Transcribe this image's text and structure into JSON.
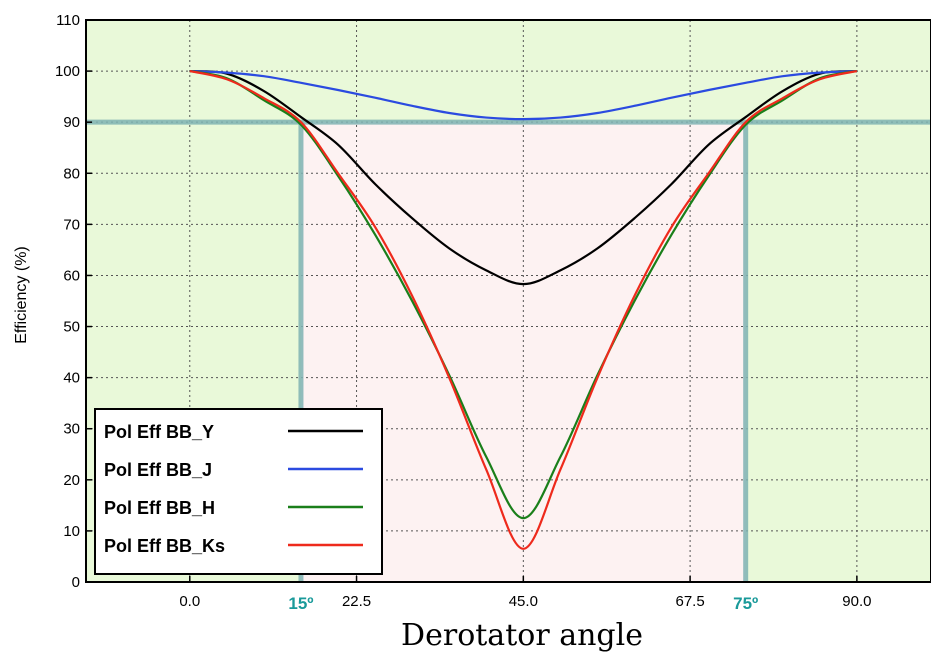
{
  "chart_data": {
    "type": "line",
    "title": "",
    "xlabel": "Derotator angle",
    "ylabel": "Efficiency (%)",
    "xlim": [
      -14,
      100
    ],
    "ylim": [
      0,
      110
    ],
    "xticks": [
      0.0,
      22.5,
      45.0,
      67.5,
      90.0
    ],
    "xtick_labels": [
      "0.0",
      "22.5",
      "45.0",
      "67.5",
      "90.0"
    ],
    "yticks": [
      0,
      10,
      20,
      30,
      40,
      50,
      60,
      70,
      80,
      90,
      100,
      110
    ],
    "ytick_labels": [
      "0",
      "10",
      "20",
      "30",
      "40",
      "50",
      "60",
      "70",
      "80",
      "90",
      "100",
      "110"
    ],
    "grid": true,
    "legend_position": "lower-left",
    "threshold": {
      "efficiency": 90,
      "angle_low": 15,
      "angle_high": 75,
      "angle_low_label": "15º",
      "angle_high_label": "75º",
      "color": "#7fb3b3",
      "label_color": "#1a9a9a"
    },
    "shading": {
      "acceptable_color": "#e9f9d9",
      "excluded_color": "#fdf2f2"
    },
    "series": [
      {
        "name": "Pol Eff BB_Y",
        "color": "#000000",
        "min_value": 58.3,
        "x": [
          0,
          5,
          10,
          15,
          20,
          25,
          30,
          35,
          40,
          45,
          50,
          55,
          60,
          65,
          70,
          75,
          80,
          85,
          90
        ],
        "values": [
          100,
          99.5,
          96.1,
          91.0,
          85.6,
          77.9,
          71.2,
          65.3,
          61.0,
          58.3,
          61.0,
          65.3,
          71.2,
          77.9,
          85.6,
          91.0,
          96.1,
          99.5,
          100
        ]
      },
      {
        "name": "Pol Eff BB_J",
        "color": "#2b4be0",
        "min_value": 90.6,
        "x": [
          0,
          5,
          10,
          15,
          20,
          25,
          30,
          35,
          40,
          45,
          50,
          55,
          60,
          65,
          70,
          75,
          80,
          85,
          90
        ],
        "values": [
          100,
          99.7,
          99.0,
          97.7,
          96.3,
          94.8,
          93.2,
          91.8,
          90.9,
          90.6,
          90.9,
          91.8,
          93.2,
          94.8,
          96.3,
          97.7,
          99.0,
          99.7,
          100
        ]
      },
      {
        "name": "Pol Eff BB_H",
        "color": "#1a7f1a",
        "min_value": 12.5,
        "x": [
          0,
          5,
          10,
          15,
          20,
          25,
          30,
          35,
          40,
          45,
          50,
          55,
          60,
          65,
          70,
          75,
          80,
          85,
          90
        ],
        "values": [
          100,
          98.6,
          94.3,
          89.5,
          79.5,
          68.0,
          55.0,
          40.5,
          24.5,
          12.5,
          24.5,
          40.5,
          55.0,
          68.0,
          79.5,
          89.5,
          94.3,
          98.6,
          100
        ]
      },
      {
        "name": "Pol Eff BB_Ks",
        "color": "#ee2a1c",
        "min_value": 6.5,
        "x": [
          0,
          5,
          10,
          15,
          20,
          25,
          30,
          35,
          40,
          45,
          50,
          55,
          60,
          65,
          70,
          75,
          80,
          85,
          90
        ],
        "values": [
          100,
          98.4,
          94.7,
          90.0,
          80.0,
          69.5,
          56.0,
          40.0,
          22.0,
          6.5,
          22.0,
          40.0,
          56.0,
          69.5,
          80.0,
          90.0,
          94.7,
          98.4,
          100
        ]
      }
    ]
  }
}
